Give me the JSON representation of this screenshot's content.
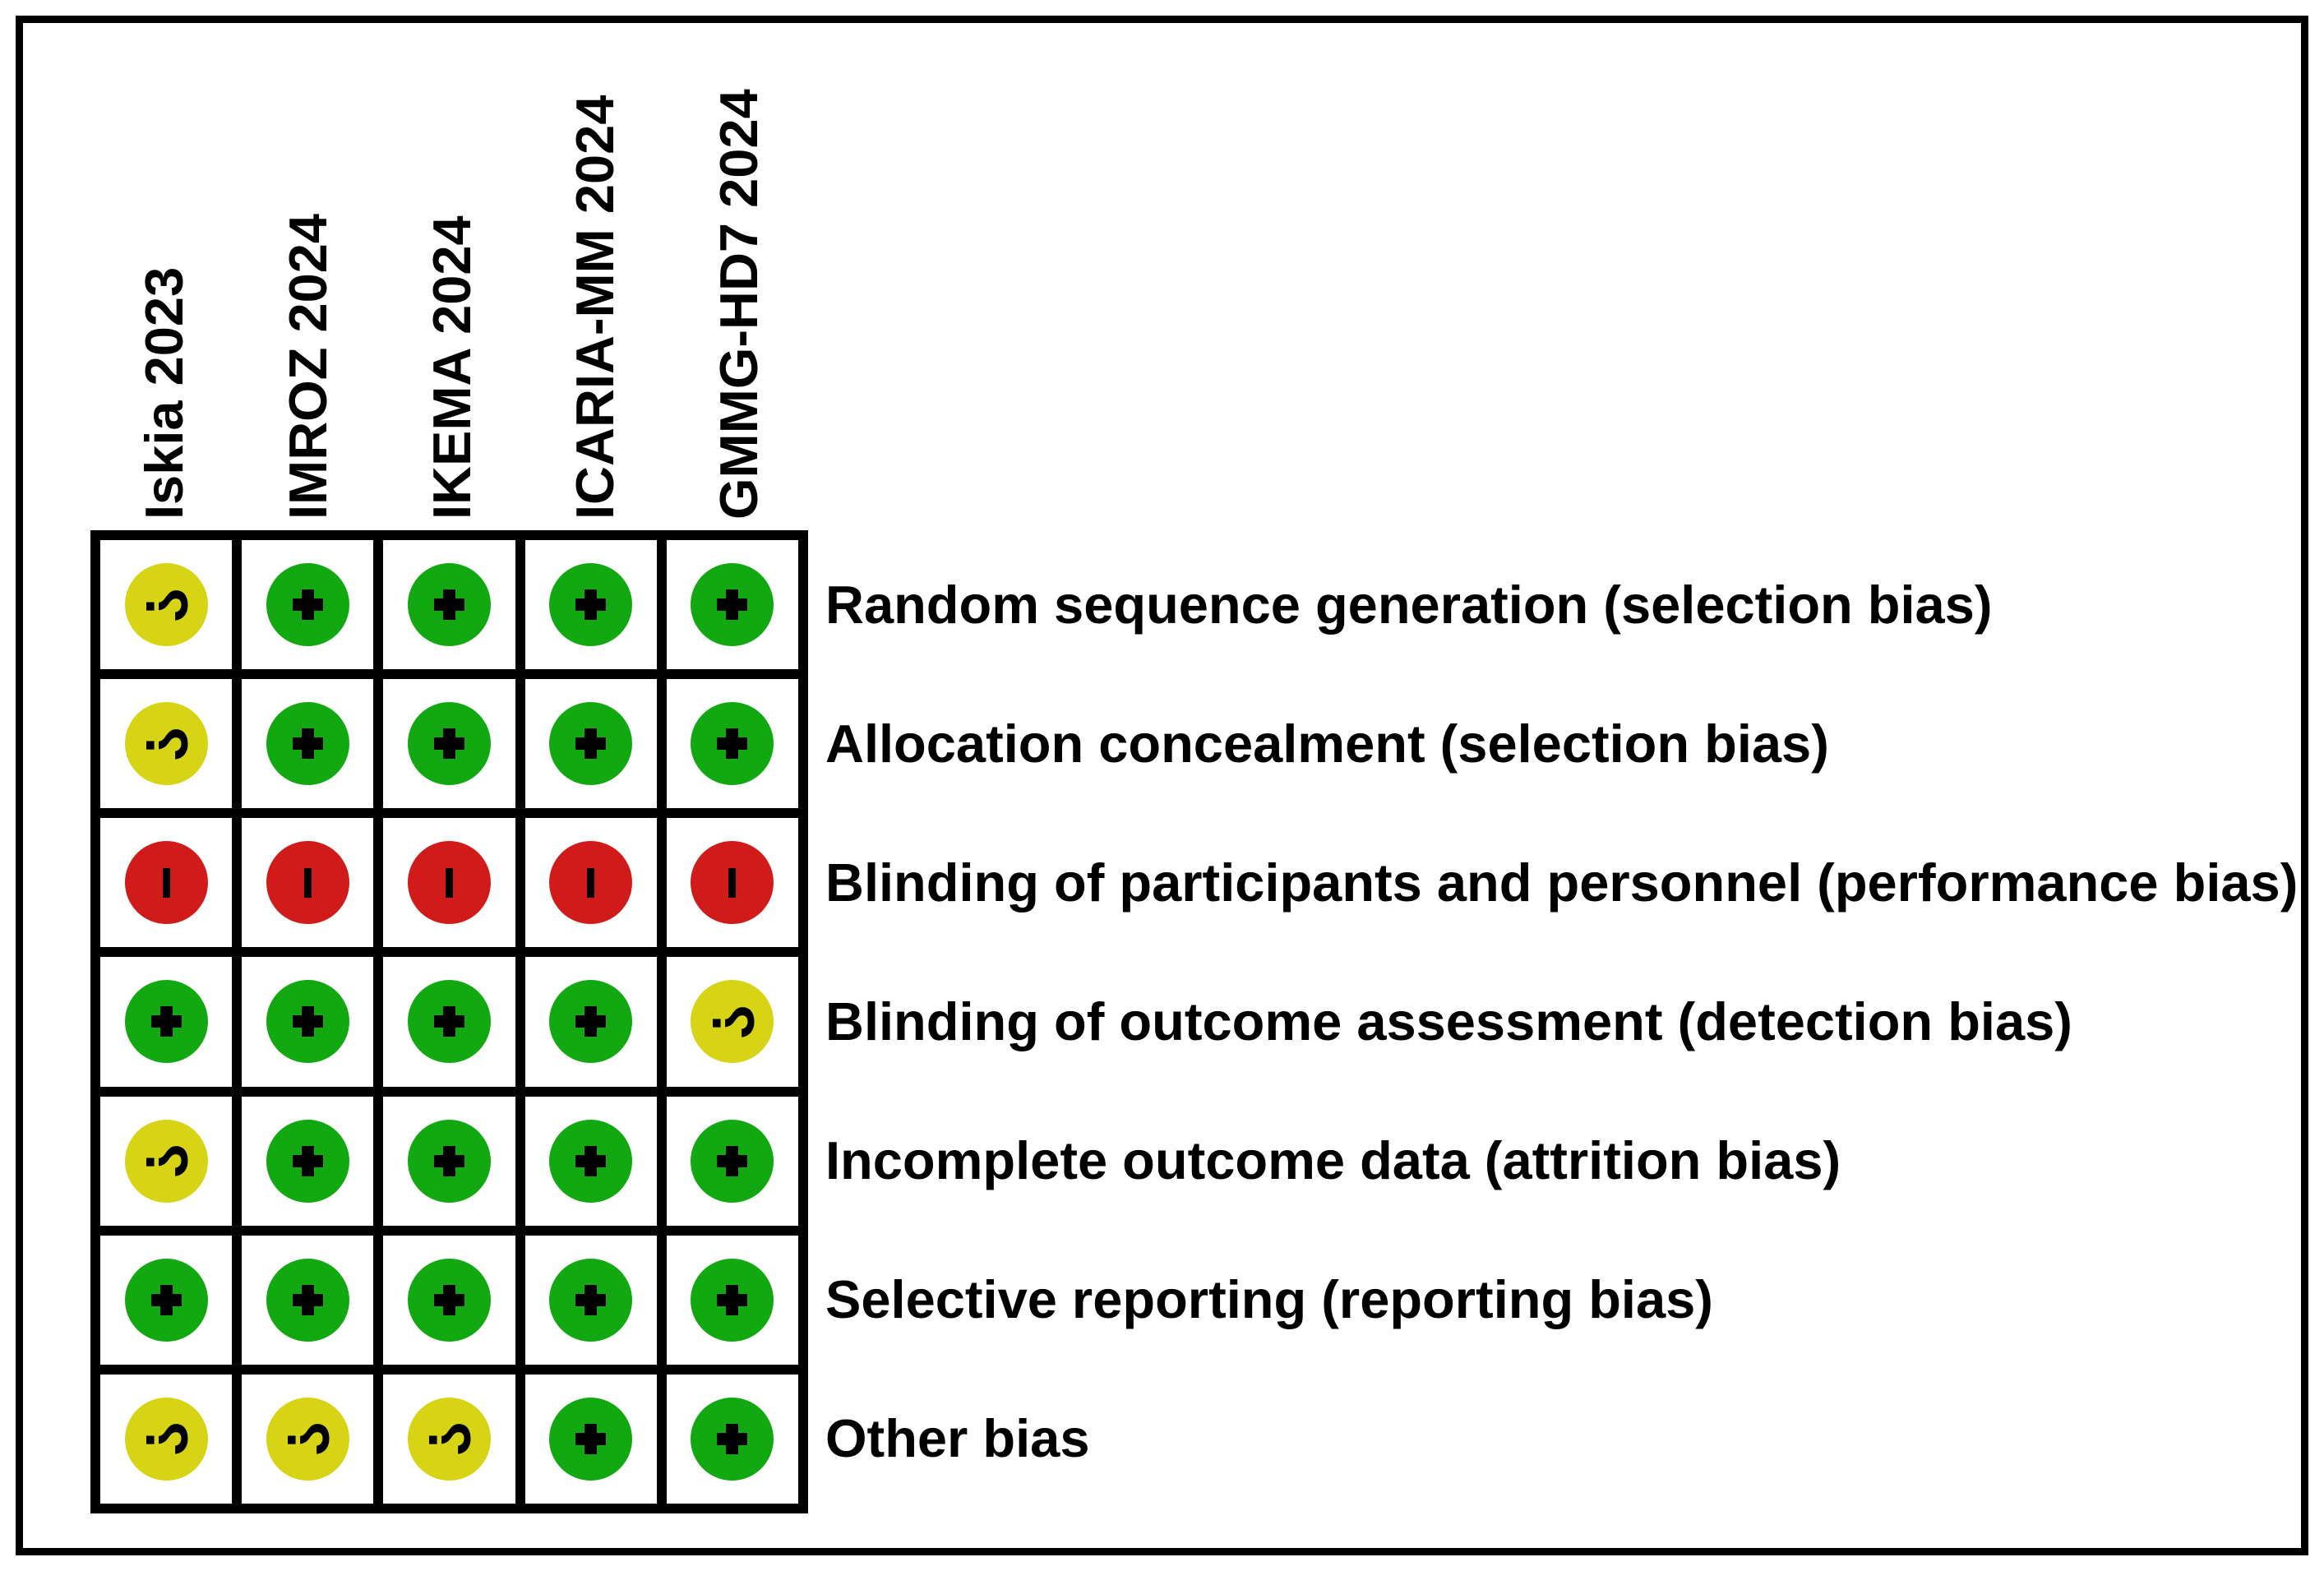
{
  "figure": {
    "studies": [
      "Iskia 2023",
      "IMROZ 2024",
      "IKEMA 2024",
      "ICARIA-MM 2024",
      "GMMG-HD7 2024"
    ],
    "domains": [
      {
        "label": "Random sequence generation (selection bias)",
        "judgements": [
          "unclear",
          "low",
          "low",
          "low",
          "low"
        ]
      },
      {
        "label": "Allocation concealment (selection bias)",
        "judgements": [
          "unclear",
          "low",
          "low",
          "low",
          "low"
        ]
      },
      {
        "label": "Blinding of participants and personnel (performance bias)",
        "judgements": [
          "high",
          "high",
          "high",
          "high",
          "high"
        ]
      },
      {
        "label": "Blinding of outcome assessment (detection bias)",
        "judgements": [
          "low",
          "low",
          "low",
          "low",
          "unclear"
        ]
      },
      {
        "label": "Incomplete outcome data (attrition bias)",
        "judgements": [
          "unclear",
          "low",
          "low",
          "low",
          "low"
        ]
      },
      {
        "label": "Selective reporting (reporting bias)",
        "judgements": [
          "low",
          "low",
          "low",
          "low",
          "low"
        ]
      },
      {
        "label": "Other bias",
        "judgements": [
          "unclear",
          "unclear",
          "unclear",
          "low",
          "low"
        ]
      }
    ],
    "legend": {
      "low": {
        "symbol": "+",
        "color": "#12a812",
        "icon": "plus-icon"
      },
      "unclear": {
        "symbol": "?",
        "color": "#d6d414",
        "icon": "question-mark-icon"
      },
      "high": {
        "symbol": "-",
        "color": "#d11a1a",
        "icon": "minus-icon"
      }
    },
    "colors": {
      "border": "#000000",
      "background": "#ffffff",
      "grid_lines": "#000000"
    }
  },
  "chart_data": {
    "type": "heatmap",
    "columns": [
      "Iskia 2023",
      "IMROZ 2024",
      "IKEMA 2024",
      "ICARIA-MM 2024",
      "GMMG-HD7 2024"
    ],
    "rows": [
      "Random sequence generation (selection bias)",
      "Allocation concealment (selection bias)",
      "Blinding of participants and personnel (performance bias)",
      "Blinding of outcome assessment (detection bias)",
      "Incomplete outcome data (attrition bias)",
      "Selective reporting (reporting bias)",
      "Other bias"
    ],
    "values": [
      [
        "?",
        "+",
        "+",
        "+",
        "+"
      ],
      [
        "?",
        "+",
        "+",
        "+",
        "+"
      ],
      [
        "-",
        "-",
        "-",
        "-",
        "-"
      ],
      [
        "+",
        "+",
        "+",
        "+",
        "?"
      ],
      [
        "?",
        "+",
        "+",
        "+",
        "+"
      ],
      [
        "+",
        "+",
        "+",
        "+",
        "+"
      ],
      [
        "?",
        "?",
        "?",
        "+",
        "+"
      ]
    ],
    "value_legend": {
      "+": "low risk (green circle)",
      "?": "unclear risk (yellow circle)",
      "-": "high risk (red circle)"
    },
    "layout_hints": {
      "column_headers_rotated": "bottom-to-top",
      "grid": "on",
      "legend_position": "none"
    }
  }
}
